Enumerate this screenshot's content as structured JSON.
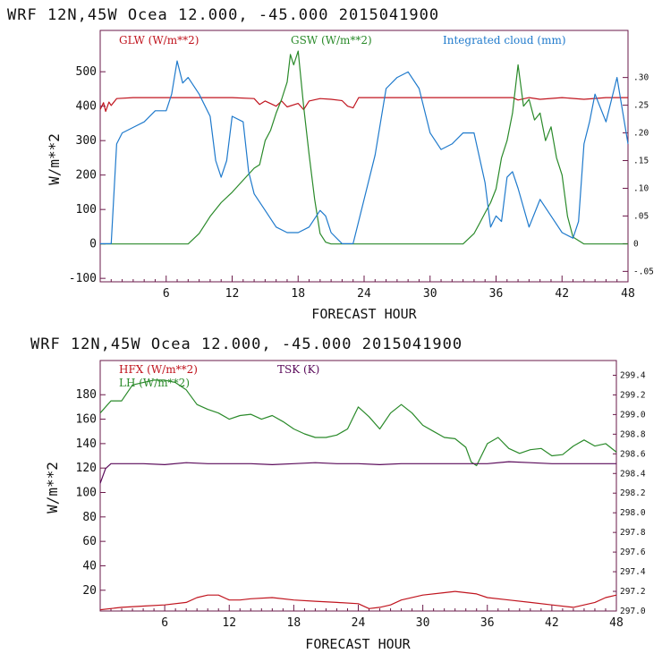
{
  "chart_data": [
    {
      "type": "line",
      "title": "WRF   12N,45W Ocea  12.000, -45.000  2015041900",
      "xlabel": "FORECAST HOUR",
      "ylabel": "W/m**2",
      "xlim": [
        0,
        48
      ],
      "ylim": [
        -110,
        620
      ],
      "x_ticks": [
        "6",
        "12",
        "18",
        "24",
        "30",
        "36",
        "42",
        "48"
      ],
      "y_ticks": [
        "-100",
        "0",
        "100",
        "200",
        "300",
        "400",
        "500"
      ],
      "y2lim": [
        -0.0688,
        0.385
      ],
      "y2_ticks": [
        "-.05",
        "0",
        ".05",
        ".10",
        ".15",
        ".20",
        ".25",
        ".30"
      ],
      "series": [
        {
          "name": "GLW (W/m**2)",
          "axis": "left",
          "color": "#c0141e",
          "x": [
            0,
            0.3,
            0.5,
            0.8,
            1,
            1.5,
            3,
            6,
            9,
            12,
            14,
            14.5,
            15,
            16,
            16.5,
            17,
            18,
            18.5,
            19,
            20,
            21,
            22,
            22.5,
            23,
            23.5,
            24,
            24.5,
            25,
            26,
            28,
            30,
            33,
            36,
            37.5,
            38,
            39,
            40,
            42,
            44,
            46,
            48
          ],
          "y": [
            390,
            410,
            385,
            412,
            402,
            422,
            425,
            425,
            425,
            425,
            422,
            405,
            415,
            400,
            415,
            398,
            408,
            390,
            415,
            422,
            420,
            416,
            400,
            395,
            425,
            425,
            425,
            425,
            425,
            425,
            425,
            425,
            425,
            425,
            418,
            425,
            420,
            425,
            420,
            425,
            425
          ]
        },
        {
          "name": "GSW (W/m**2)",
          "axis": "left",
          "color": "#2a8a2a",
          "x": [
            0,
            8,
            9,
            10,
            11,
            12,
            13,
            14,
            14.5,
            15,
            15.5,
            16,
            16.5,
            17,
            17.3,
            17.6,
            18,
            18.5,
            19,
            19.5,
            20,
            20.5,
            21,
            22,
            33,
            34,
            34.5,
            35,
            35.5,
            36,
            36.5,
            37,
            37.5,
            38,
            38.5,
            39,
            39.5,
            40,
            40.5,
            41,
            41.5,
            42,
            42.5,
            43,
            44,
            48
          ],
          "y": [
            0,
            0,
            30,
            80,
            120,
            150,
            185,
            220,
            230,
            300,
            330,
            380,
            420,
            470,
            550,
            520,
            560,
            400,
            260,
            130,
            30,
            5,
            0,
            0,
            0,
            30,
            60,
            90,
            120,
            160,
            250,
            300,
            380,
            520,
            400,
            420,
            360,
            380,
            300,
            340,
            250,
            200,
            80,
            20,
            0,
            0
          ]
        },
        {
          "name": "Integrated cloud (mm)",
          "axis": "right",
          "color": "#1f7acc",
          "x": [
            0,
            1,
            1.5,
            2,
            3,
            4,
            5,
            6,
            6.5,
            7,
            7.5,
            8,
            9,
            10,
            10.5,
            11,
            11.5,
            12,
            13,
            13.5,
            14,
            15,
            16,
            17,
            18,
            19,
            20,
            20.5,
            21,
            22,
            23,
            24,
            25,
            26,
            27,
            28,
            29,
            30,
            31,
            32,
            33,
            34,
            35,
            35.5,
            36,
            36.5,
            37,
            37.5,
            38,
            39,
            40,
            41,
            42,
            43,
            43.5,
            44,
            44.5,
            45,
            46,
            47,
            48
          ],
          "y": [
            0,
            0,
            0.18,
            0.2,
            0.21,
            0.22,
            0.24,
            0.24,
            0.27,
            0.33,
            0.29,
            0.3,
            0.27,
            0.23,
            0.15,
            0.12,
            0.15,
            0.23,
            0.22,
            0.13,
            0.09,
            0.06,
            0.03,
            0.02,
            0.02,
            0.03,
            0.06,
            0.05,
            0.02,
            0,
            0,
            0.08,
            0.16,
            0.28,
            0.3,
            0.31,
            0.28,
            0.2,
            0.17,
            0.18,
            0.2,
            0.2,
            0.11,
            0.03,
            0.05,
            0.04,
            0.12,
            0.13,
            0.1,
            0.03,
            0.08,
            0.05,
            0.02,
            0.01,
            0.04,
            0.18,
            0.22,
            0.27,
            0.22,
            0.3,
            0.18
          ]
        }
      ]
    },
    {
      "type": "line",
      "title": "WRF   12N,45W Ocea  12.000, -45.000  2015041900",
      "xlabel": "FORECAST HOUR",
      "ylabel": "W/m**2",
      "xlim": [
        0,
        48
      ],
      "ylim": [
        3,
        208
      ],
      "x_ticks": [
        "6",
        "12",
        "18",
        "24",
        "30",
        "36",
        "42",
        "48"
      ],
      "y_ticks": [
        "20",
        "40",
        "60",
        "80",
        "100",
        "120",
        "140",
        "160",
        "180"
      ],
      "y2lim": [
        297.0,
        299.55
      ],
      "y2_ticks": [
        "297.0",
        "297.2",
        "297.4",
        "297.6",
        "297.8",
        "298.0",
        "298.2",
        "298.4",
        "298.6",
        "298.8",
        "299.0",
        "299.2",
        "299.4"
      ],
      "series": [
        {
          "name": "HFX (W/m**2)",
          "axis": "left",
          "color": "#c0141e",
          "x": [
            0,
            2,
            4,
            6,
            8,
            9,
            10,
            11,
            12,
            13,
            14,
            16,
            18,
            20,
            22,
            24,
            25,
            26,
            27,
            28,
            30,
            32,
            33,
            34,
            35,
            36,
            38,
            40,
            42,
            44,
            46,
            47,
            48
          ],
          "y": [
            4,
            6,
            7,
            8,
            10,
            14,
            16,
            16,
            12,
            12,
            13,
            14,
            12,
            11,
            10,
            9,
            5,
            6,
            8,
            12,
            16,
            18,
            19,
            18,
            17,
            14,
            12,
            10,
            8,
            6,
            10,
            14,
            16
          ]
        },
        {
          "name": "LH (W/m**2)",
          "axis": "left",
          "color": "#2a8a2a",
          "x": [
            0,
            1,
            2,
            3,
            4,
            5,
            6,
            7,
            8,
            9,
            10,
            11,
            12,
            13,
            14,
            15,
            16,
            17,
            18,
            19,
            20,
            21,
            22,
            23,
            24,
            25,
            26,
            27,
            28,
            29,
            30,
            31,
            32,
            33,
            34,
            34.5,
            35,
            36,
            37,
            38,
            39,
            40,
            41,
            42,
            43,
            44,
            45,
            46,
            47,
            48
          ],
          "y": [
            165,
            175,
            175,
            188,
            190,
            192,
            192,
            190,
            184,
            172,
            168,
            165,
            160,
            163,
            164,
            160,
            163,
            158,
            152,
            148,
            145,
            145,
            147,
            152,
            170,
            162,
            152,
            165,
            172,
            165,
            155,
            150,
            145,
            144,
            137,
            125,
            122,
            140,
            145,
            136,
            132,
            135,
            136,
            130,
            131,
            138,
            143,
            138,
            140,
            133
          ]
        },
        {
          "name": "TSK (K)",
          "axis": "right",
          "color": "#5a0a5a",
          "x": [
            0,
            0.5,
            1,
            2,
            4,
            6,
            8,
            10,
            12,
            14,
            16,
            18,
            20,
            22,
            24,
            26,
            28,
            30,
            32,
            34,
            36,
            38,
            40,
            42,
            44,
            46,
            48
          ],
          "y": [
            298.3,
            298.45,
            298.5,
            298.5,
            298.5,
            298.49,
            298.51,
            298.5,
            298.5,
            298.5,
            298.49,
            298.5,
            298.51,
            298.5,
            298.5,
            298.49,
            298.5,
            298.5,
            298.5,
            298.5,
            298.5,
            298.52,
            298.51,
            298.5,
            298.5,
            298.5,
            298.5
          ]
        }
      ]
    }
  ]
}
